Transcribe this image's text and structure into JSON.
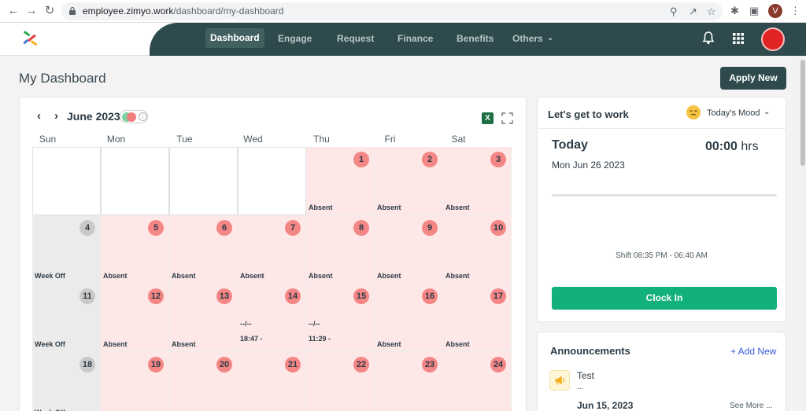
{
  "browser": {
    "url_domain": "employee.zimyo.work",
    "url_path": "/dashboard/my-dashboard",
    "profile_initial": "V"
  },
  "nav": {
    "items": [
      {
        "label": "Dashboard",
        "active": true
      },
      {
        "label": "Engage"
      },
      {
        "label": "Request"
      },
      {
        "label": "Finance"
      },
      {
        "label": "Benefits"
      },
      {
        "label": "Others"
      }
    ]
  },
  "page": {
    "title": "My Dashboard",
    "apply_button": "Apply New"
  },
  "calendar": {
    "month_label": "June 2023",
    "weekdays": [
      "Sun",
      "Mon",
      "Tue",
      "Wed",
      "Thu",
      "Fri",
      "Sat"
    ],
    "weeks": [
      [
        {
          "empty": true
        },
        {
          "empty": true
        },
        {
          "empty": true
        },
        {
          "empty": true
        },
        {
          "day": "1",
          "type": "absent",
          "status": "Absent"
        },
        {
          "day": "2",
          "type": "absent",
          "status": "Absent"
        },
        {
          "day": "3",
          "type": "absent",
          "status": "Absent"
        }
      ],
      [
        {
          "day": "4",
          "type": "weekoff",
          "status": "Week Off"
        },
        {
          "day": "5",
          "type": "absent",
          "status": "Absent"
        },
        {
          "day": "6",
          "type": "absent",
          "status": "Absent"
        },
        {
          "day": "7",
          "type": "absent",
          "status": "Absent"
        },
        {
          "day": "8",
          "type": "absent",
          "status": "Absent"
        },
        {
          "day": "9",
          "type": "absent",
          "status": "Absent"
        },
        {
          "day": "10",
          "type": "absent",
          "status": "Absent"
        }
      ],
      [
        {
          "day": "11",
          "type": "weekoff",
          "status": "Week Off"
        },
        {
          "day": "12",
          "type": "absent",
          "status": "Absent"
        },
        {
          "day": "13",
          "type": "absent",
          "status": "Absent"
        },
        {
          "day": "14",
          "type": "absent",
          "time_in": "--/--",
          "time_out": "18:47 -"
        },
        {
          "day": "15",
          "type": "absent",
          "time_in": "--/--",
          "time_out": "11:29 -"
        },
        {
          "day": "16",
          "type": "absent",
          "status": "Absent"
        },
        {
          "day": "17",
          "type": "absent",
          "status": "Absent"
        }
      ],
      [
        {
          "day": "18",
          "type": "weekoff",
          "status": "Week Off"
        },
        {
          "day": "19",
          "type": "absent"
        },
        {
          "day": "20",
          "type": "absent"
        },
        {
          "day": "21",
          "type": "absent"
        },
        {
          "day": "22",
          "type": "absent"
        },
        {
          "day": "23",
          "type": "absent"
        },
        {
          "day": "24",
          "type": "absent"
        }
      ]
    ]
  },
  "work": {
    "title": "Let's get to work",
    "mood_label": "Today's Mood",
    "today_label": "Today",
    "date": "Mon Jun 26 2023",
    "hours_value": "00:00",
    "hours_unit": "hrs",
    "shift": "Shift 08:35 PM - 06:40 AM",
    "clock_in": "Clock In"
  },
  "announcements": {
    "title": "Announcements",
    "add_label": "+ Add New",
    "item": {
      "name": "Test",
      "desc": "...",
      "date": "Jun 15, 2023",
      "more": "See More ..."
    }
  },
  "colors": {
    "nav_bg": "#2e4a4c",
    "absent_bg": "#fde7e7",
    "absent_badge": "#f58686",
    "weekoff_bg": "#ebebeb",
    "clockin_green": "#12b07a"
  }
}
